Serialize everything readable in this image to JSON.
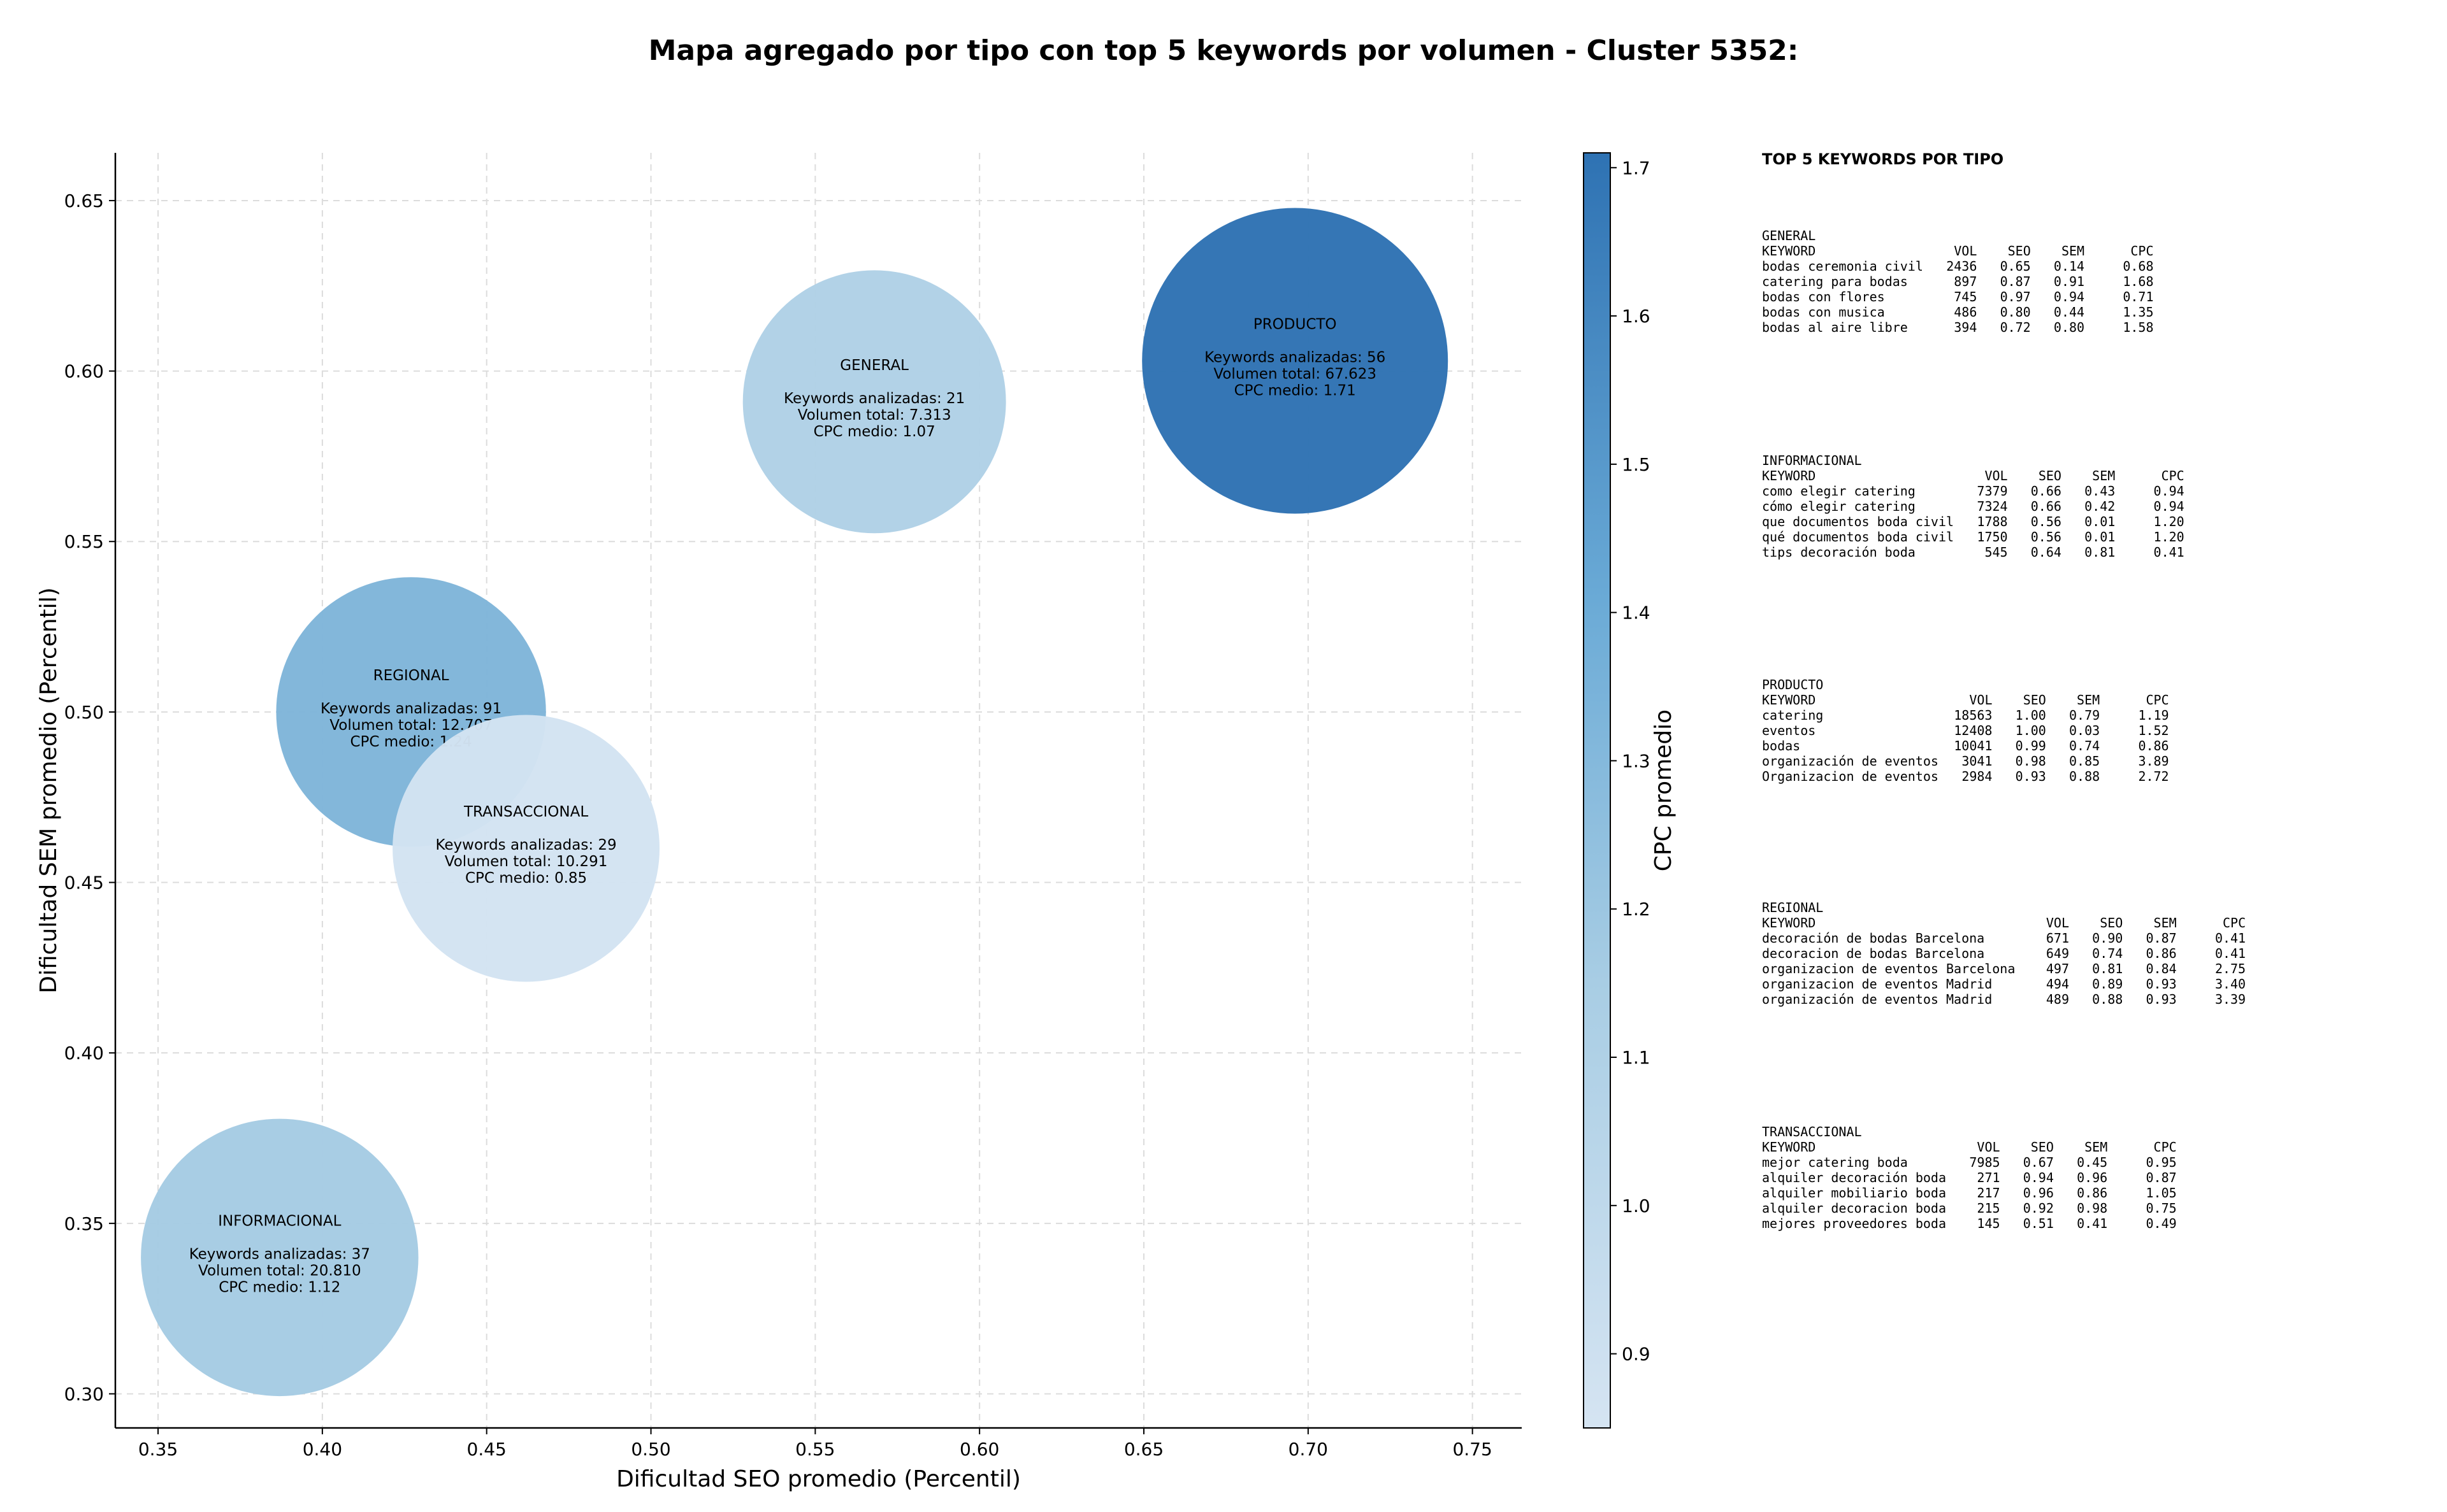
{
  "title": "Mapa agregado por tipo con top 5 keywords por volumen - Cluster 5352:",
  "chart_data": {
    "type": "scatter",
    "title": "Mapa agregado por tipo con top 5 keywords por volumen - Cluster 5352:",
    "xlabel": "Dificultad SEO promedio (Percentil)",
    "ylabel": "Dificultad SEM promedio (Percentil)",
    "xlim": [
      0.337,
      0.765
    ],
    "ylim": [
      0.29,
      0.664
    ],
    "xticks": [
      0.35,
      0.4,
      0.45,
      0.5,
      0.55,
      0.6,
      0.65,
      0.7,
      0.75
    ],
    "xtick_labels": [
      "0.35",
      "0.40",
      "0.45",
      "0.50",
      "0.55",
      "0.60",
      "0.65",
      "0.70",
      "0.75"
    ],
    "yticks": [
      0.3,
      0.35,
      0.4,
      0.45,
      0.5,
      0.55,
      0.6,
      0.65
    ],
    "ytick_labels": [
      "0.30",
      "0.35",
      "0.40",
      "0.45",
      "0.50",
      "0.55",
      "0.60",
      "0.65"
    ],
    "grid": true,
    "bubble_size_meaning": "Volumen total",
    "colorbar": {
      "label": "CPC promedio",
      "range": [
        0.85,
        1.71
      ],
      "ticks": [
        0.9,
        1.0,
        1.1,
        1.2,
        1.3,
        1.4,
        1.5,
        1.6,
        1.7
      ],
      "tick_labels": [
        "0.9",
        "1.0",
        "1.1",
        "1.2",
        "1.3",
        "1.4",
        "1.5",
        "1.6",
        "1.7"
      ],
      "color_low": "#d5e4f2",
      "color_high": "#2e72b3"
    },
    "points": [
      {
        "tipo": "GENERAL",
        "x": 0.568,
        "y": 0.591,
        "keywords_label": "Keywords analizadas: 21",
        "volumen_label": "Volumen total: 7.313",
        "cpc_label": "CPC medio: 1.07",
        "cpc": 1.07,
        "volumen": 7313,
        "color": "#afd1e6"
      },
      {
        "tipo": "PRODUCTO",
        "x": 0.696,
        "y": 0.603,
        "keywords_label": "Keywords analizadas: 56",
        "volumen_label": "Volumen total: 67.623",
        "cpc_label": "CPC medio: 1.71",
        "cpc": 1.71,
        "volumen": 67623,
        "color": "#2e72b3"
      },
      {
        "tipo": "REGIONAL",
        "x": 0.427,
        "y": 0.5,
        "keywords_label": "Keywords analizadas: 91",
        "volumen_label": "Volumen total: 12.707",
        "cpc_label": "CPC medio: 1.24",
        "cpc": 1.24,
        "volumen": 12707,
        "color": "#7fb5d9"
      },
      {
        "tipo": "TRANSACCIONAL",
        "x": 0.462,
        "y": 0.46,
        "keywords_label": "Keywords analizadas: 29",
        "volumen_label": "Volumen total: 10.291",
        "cpc_label": "CPC medio: 0.85",
        "cpc": 0.85,
        "volumen": 10291,
        "color": "#d3e3f2"
      },
      {
        "tipo": "INFORMACIONAL",
        "x": 0.387,
        "y": 0.34,
        "keywords_label": "Keywords analizadas: 37",
        "volumen_label": "Volumen total: 20.810",
        "cpc_label": "CPC medio: 1.12",
        "cpc": 1.12,
        "volumen": 20810,
        "color": "#a5cbe3"
      }
    ]
  },
  "panel": {
    "title": "TOP 5 KEYWORDS POR TIPO",
    "groups": [
      {
        "name": "GENERAL",
        "header": [
          "KEYWORD",
          "VOL",
          "SEO",
          "SEM",
          "CPC"
        ],
        "rows": [
          [
            "bodas ceremonia civil",
            "2436",
            "0.65",
            "0.14",
            "0.68"
          ],
          [
            "catering para bodas",
            "897",
            "0.87",
            "0.91",
            "1.68"
          ],
          [
            "bodas con flores",
            "745",
            "0.97",
            "0.94",
            "0.71"
          ],
          [
            "bodas con musica",
            "486",
            "0.80",
            "0.44",
            "1.35"
          ],
          [
            "bodas al aire libre",
            "394",
            "0.72",
            "0.80",
            "1.58"
          ]
        ]
      },
      {
        "name": "INFORMACIONAL",
        "header": [
          "KEYWORD",
          "VOL",
          "SEO",
          "SEM",
          "CPC"
        ],
        "rows": [
          [
            "como elegir catering",
            "7379",
            "0.66",
            "0.43",
            "0.94"
          ],
          [
            "cómo elegir catering",
            "7324",
            "0.66",
            "0.42",
            "0.94"
          ],
          [
            "que documentos boda civil",
            "1788",
            "0.56",
            "0.01",
            "1.20"
          ],
          [
            "qué documentos boda civil",
            "1750",
            "0.56",
            "0.01",
            "1.20"
          ],
          [
            "tips decoración boda",
            "545",
            "0.64",
            "0.81",
            "0.41"
          ]
        ]
      },
      {
        "name": "PRODUCTO",
        "header": [
          "KEYWORD",
          "VOL",
          "SEO",
          "SEM",
          "CPC"
        ],
        "rows": [
          [
            "catering",
            "18563",
            "1.00",
            "0.79",
            "1.19"
          ],
          [
            "eventos",
            "12408",
            "1.00",
            "0.03",
            "1.52"
          ],
          [
            "bodas",
            "10041",
            "0.99",
            "0.74",
            "0.86"
          ],
          [
            "organización de eventos",
            "3041",
            "0.98",
            "0.85",
            "3.89"
          ],
          [
            "Organizacion de eventos",
            "2984",
            "0.93",
            "0.88",
            "2.72"
          ]
        ]
      },
      {
        "name": "REGIONAL",
        "header": [
          "KEYWORD",
          "VOL",
          "SEO",
          "SEM",
          "CPC"
        ],
        "rows": [
          [
            "decoración de bodas Barcelona",
            "671",
            "0.90",
            "0.87",
            "0.41"
          ],
          [
            "decoracion de bodas Barcelona",
            "649",
            "0.74",
            "0.86",
            "0.41"
          ],
          [
            "organizacion de eventos Barcelona",
            "497",
            "0.81",
            "0.84",
            "2.75"
          ],
          [
            "organizacion de eventos Madrid",
            "494",
            "0.89",
            "0.93",
            "3.40"
          ],
          [
            "organización de eventos Madrid",
            "489",
            "0.88",
            "0.93",
            "3.39"
          ]
        ]
      },
      {
        "name": "TRANSACCIONAL",
        "header": [
          "KEYWORD",
          "VOL",
          "SEO",
          "SEM",
          "CPC"
        ],
        "rows": [
          [
            "mejor catering boda",
            "7985",
            "0.67",
            "0.45",
            "0.95"
          ],
          [
            "alquiler decoración boda",
            "271",
            "0.94",
            "0.96",
            "0.87"
          ],
          [
            "alquiler mobiliario boda",
            "217",
            "0.96",
            "0.86",
            "1.05"
          ],
          [
            "alquiler decoracion boda",
            "215",
            "0.92",
            "0.98",
            "0.75"
          ],
          [
            "mejores proveedores boda",
            "145",
            "0.51",
            "0.41",
            "0.49"
          ]
        ]
      }
    ]
  }
}
